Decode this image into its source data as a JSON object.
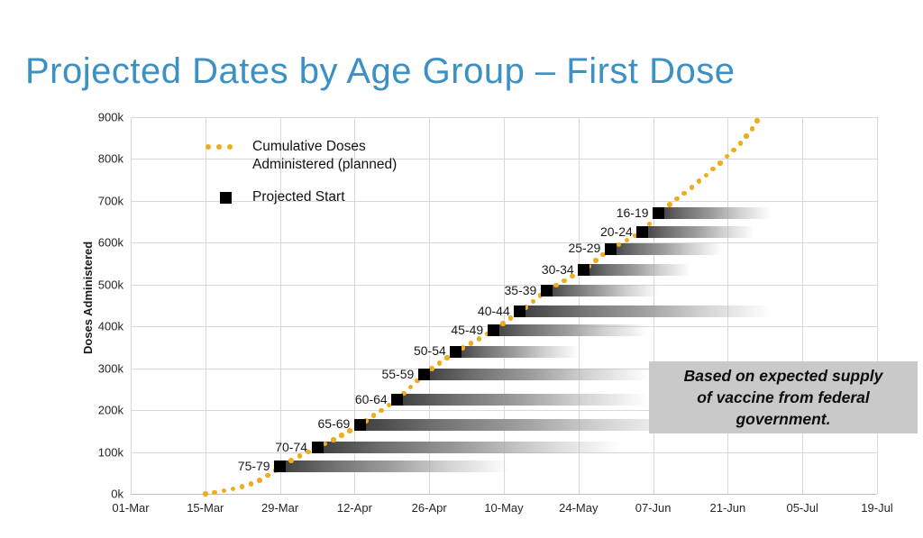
{
  "title": "Projected Dates by Age Group – First Dose",
  "title_color": "#3b90c4",
  "legend": {
    "cumulative_line1": "Cumulative Doses",
    "cumulative_line2": "Administered (planned)",
    "projected_start": "Projected Start",
    "dot_color": "#efac1d",
    "square_color": "#000000"
  },
  "annotation": {
    "line1": "Based on expected supply",
    "line2": "of vaccine from federal",
    "line3": "government.",
    "bg_color": "#c9c9c9"
  },
  "chart_data": {
    "type": "scatter",
    "title": "",
    "xlabel": "",
    "ylabel": "Doses Administered",
    "grid": true,
    "x_axis": {
      "tick_labels": [
        "01-Mar",
        "15-Mar",
        "29-Mar",
        "12-Apr",
        "26-Apr",
        "10-May",
        "24-May",
        "07-Jun",
        "21-Jun",
        "05-Jul",
        "19-Jul"
      ],
      "tick_interval_days": 14
    },
    "y_axis": {
      "tick_labels": [
        "0k",
        "100k",
        "200k",
        "300k",
        "400k",
        "500k",
        "600k",
        "700k",
        "800k",
        "900k"
      ],
      "tick_values_k": [
        0,
        100,
        200,
        300,
        400,
        500,
        600,
        700,
        800,
        900
      ],
      "ylim_k": [
        0,
        900
      ]
    },
    "series": [
      {
        "name": "Cumulative Doses Administered (planned)",
        "style": "dotted-curve",
        "color": "#efac1d",
        "points_day_dosesk": [
          [
            14,
            0
          ],
          [
            17,
            6
          ],
          [
            20,
            14
          ],
          [
            23,
            25
          ],
          [
            25,
            38
          ],
          [
            26.5,
            50
          ],
          [
            28,
            65
          ],
          [
            31,
            86
          ],
          [
            33,
            98
          ],
          [
            35,
            110
          ],
          [
            39,
            136
          ],
          [
            43,
            165
          ],
          [
            46.5,
            195
          ],
          [
            50,
            225
          ],
          [
            52.5,
            255
          ],
          [
            55,
            285
          ],
          [
            58,
            313
          ],
          [
            61,
            340
          ],
          [
            64.5,
            364
          ],
          [
            68,
            390
          ],
          [
            70.5,
            413
          ],
          [
            73,
            435
          ],
          [
            75.5,
            460
          ],
          [
            78,
            485
          ],
          [
            81.5,
            510
          ],
          [
            85,
            535
          ],
          [
            87.5,
            560
          ],
          [
            90,
            585
          ],
          [
            93,
            606
          ],
          [
            96,
            625
          ],
          [
            97.5,
            647
          ],
          [
            99,
            670
          ],
          [
            102,
            700
          ],
          [
            105,
            730
          ],
          [
            108,
            762
          ],
          [
            111,
            795
          ],
          [
            114,
            832
          ],
          [
            116,
            862
          ],
          [
            118,
            900
          ]
        ]
      },
      {
        "name": "Projected Start",
        "style": "square-marker-with-fading-bar",
        "color": "#000000",
        "groups": [
          {
            "label": "75-79",
            "start_date": "29-Mar",
            "start_day": 28,
            "doses_k": 65,
            "bar_days": 43
          },
          {
            "label": "70-74",
            "start_date": "05-Apr",
            "start_day": 35,
            "doses_k": 110,
            "bar_days": 57
          },
          {
            "label": "65-69",
            "start_date": "13-Apr",
            "start_day": 43,
            "doses_k": 165,
            "bar_days": 62
          },
          {
            "label": "60-64",
            "start_date": "20-Apr",
            "start_day": 50,
            "doses_k": 225,
            "bar_days": 47
          },
          {
            "label": "55-59",
            "start_date": "25-Apr",
            "start_day": 55,
            "doses_k": 285,
            "bar_days": 42
          },
          {
            "label": "50-54",
            "start_date": "01-May",
            "start_day": 61,
            "doses_k": 340,
            "bar_days": 23
          },
          {
            "label": "45-49",
            "start_date": "08-May",
            "start_day": 68,
            "doses_k": 390,
            "bar_days": 29
          },
          {
            "label": "40-44",
            "start_date": "13-May",
            "start_day": 73,
            "doses_k": 435,
            "bar_days": 47
          },
          {
            "label": "35-39",
            "start_date": "18-May",
            "start_day": 78,
            "doses_k": 485,
            "bar_days": 21
          },
          {
            "label": "30-34",
            "start_date": "25-May",
            "start_day": 85,
            "doses_k": 535,
            "bar_days": 20
          },
          {
            "label": "25-29",
            "start_date": "30-May",
            "start_day": 90,
            "doses_k": 585,
            "bar_days": 21
          },
          {
            "label": "20-24",
            "start_date": "05-Jun",
            "start_day": 96,
            "doses_k": 625,
            "bar_days": 21
          },
          {
            "label": "16-19",
            "start_date": "08-Jun",
            "start_day": 99,
            "doses_k": 670,
            "bar_days": 21
          }
        ]
      }
    ]
  }
}
